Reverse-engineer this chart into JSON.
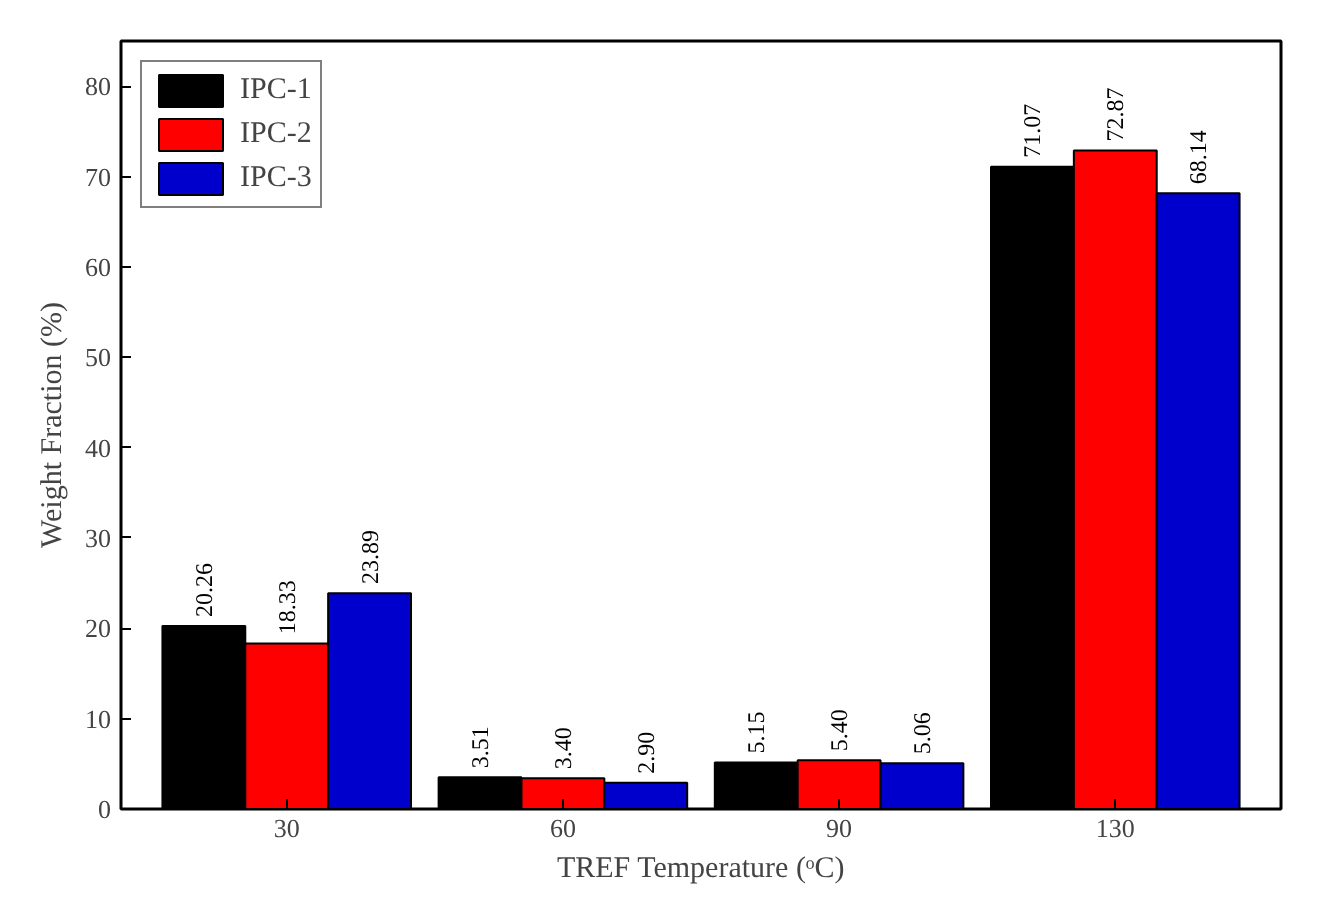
{
  "chart_data": {
    "type": "bar",
    "xlabel": "TREF Temperature (ᵒC)",
    "ylabel": "Weight Fraction (%)",
    "categories": [
      "30",
      "60",
      "90",
      "130"
    ],
    "series": [
      {
        "name": "IPC-1",
        "color": "#000000",
        "values": [
          20.26,
          3.51,
          5.15,
          71.07
        ],
        "value_labels": [
          "20.26",
          "3.51",
          "5.15",
          "71.07"
        ]
      },
      {
        "name": "IPC-2",
        "color": "#ff0000",
        "values": [
          18.33,
          3.4,
          5.4,
          72.87
        ],
        "value_labels": [
          "18.33",
          "3.40",
          "5.40",
          "72.87"
        ]
      },
      {
        "name": "IPC-3",
        "color": "#0000cc",
        "values": [
          23.89,
          2.9,
          5.06,
          68.14
        ],
        "value_labels": [
          "23.89",
          "2.90",
          "5.06",
          "68.14"
        ]
      }
    ],
    "ylim": [
      0,
      85
    ],
    "yticks": [
      0,
      10,
      20,
      30,
      40,
      50,
      60,
      70,
      80
    ],
    "grid": false,
    "legend": "top left"
  }
}
